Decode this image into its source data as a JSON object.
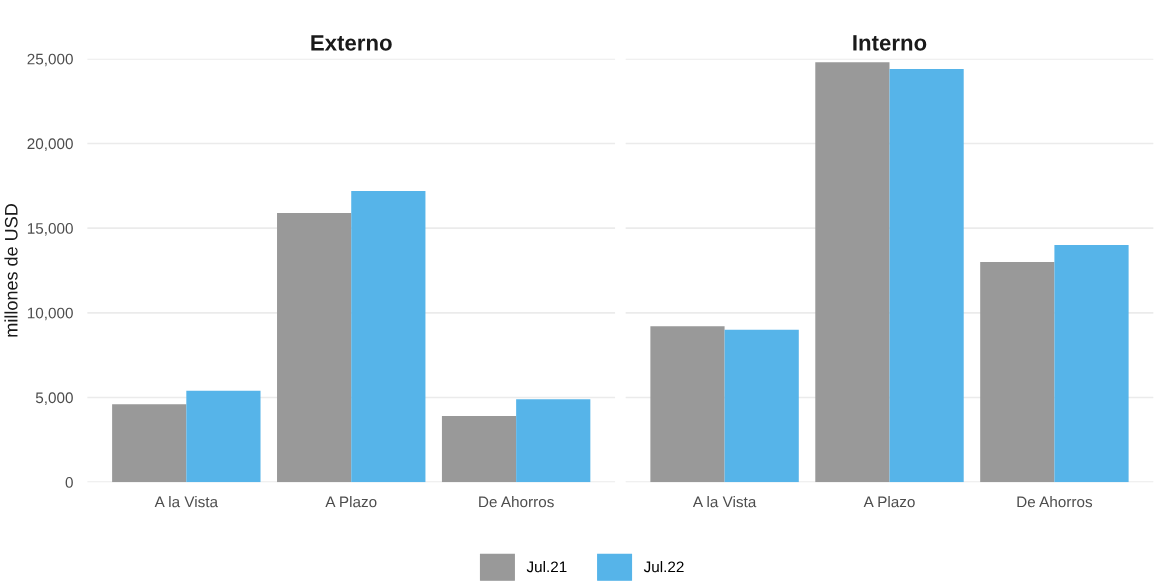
{
  "chart_data": [
    {
      "type": "bar",
      "title": "Externo",
      "ylabel": "millones de USD",
      "categories": [
        "A la Vista",
        "A Plazo",
        "De Ahorros"
      ],
      "series": [
        {
          "name": "Jul.21",
          "color": "#999999",
          "values": [
            4600,
            15900,
            3900
          ]
        },
        {
          "name": "Jul.22",
          "color": "#56b4e9",
          "values": [
            5400,
            17200,
            4900
          ]
        }
      ],
      "ylim": [
        0,
        25000
      ],
      "yticks": [
        {
          "value": 0,
          "label": "0"
        },
        {
          "value": 5000,
          "label": "5,000"
        },
        {
          "value": 10000,
          "label": "10,000"
        },
        {
          "value": 15000,
          "label": "15,000"
        },
        {
          "value": 20000,
          "label": "20,000"
        },
        {
          "value": 25000,
          "label": "25,000"
        }
      ],
      "grid": "y",
      "legend": "bottom"
    },
    {
      "type": "bar",
      "title": "Interno",
      "categories": [
        "A la Vista",
        "A Plazo",
        "De Ahorros"
      ],
      "series": [
        {
          "color": "#999999",
          "values": [
            9200,
            24800,
            13000
          ]
        },
        {
          "color": "#56b4e9",
          "values": [
            9000,
            24400,
            14000
          ]
        }
      ],
      "ylim": [
        0,
        25000
      ],
      "yticks": [
        {
          "value": 0,
          "label": null
        },
        {
          "value": 5000,
          "label": null
        },
        {
          "value": 10000,
          "label": null
        },
        {
          "value": 15000,
          "label": null
        },
        {
          "value": 20000,
          "label": null
        },
        {
          "value": 25000,
          "label": null
        }
      ],
      "grid": "y",
      "tick_labels": "x"
    }
  ]
}
